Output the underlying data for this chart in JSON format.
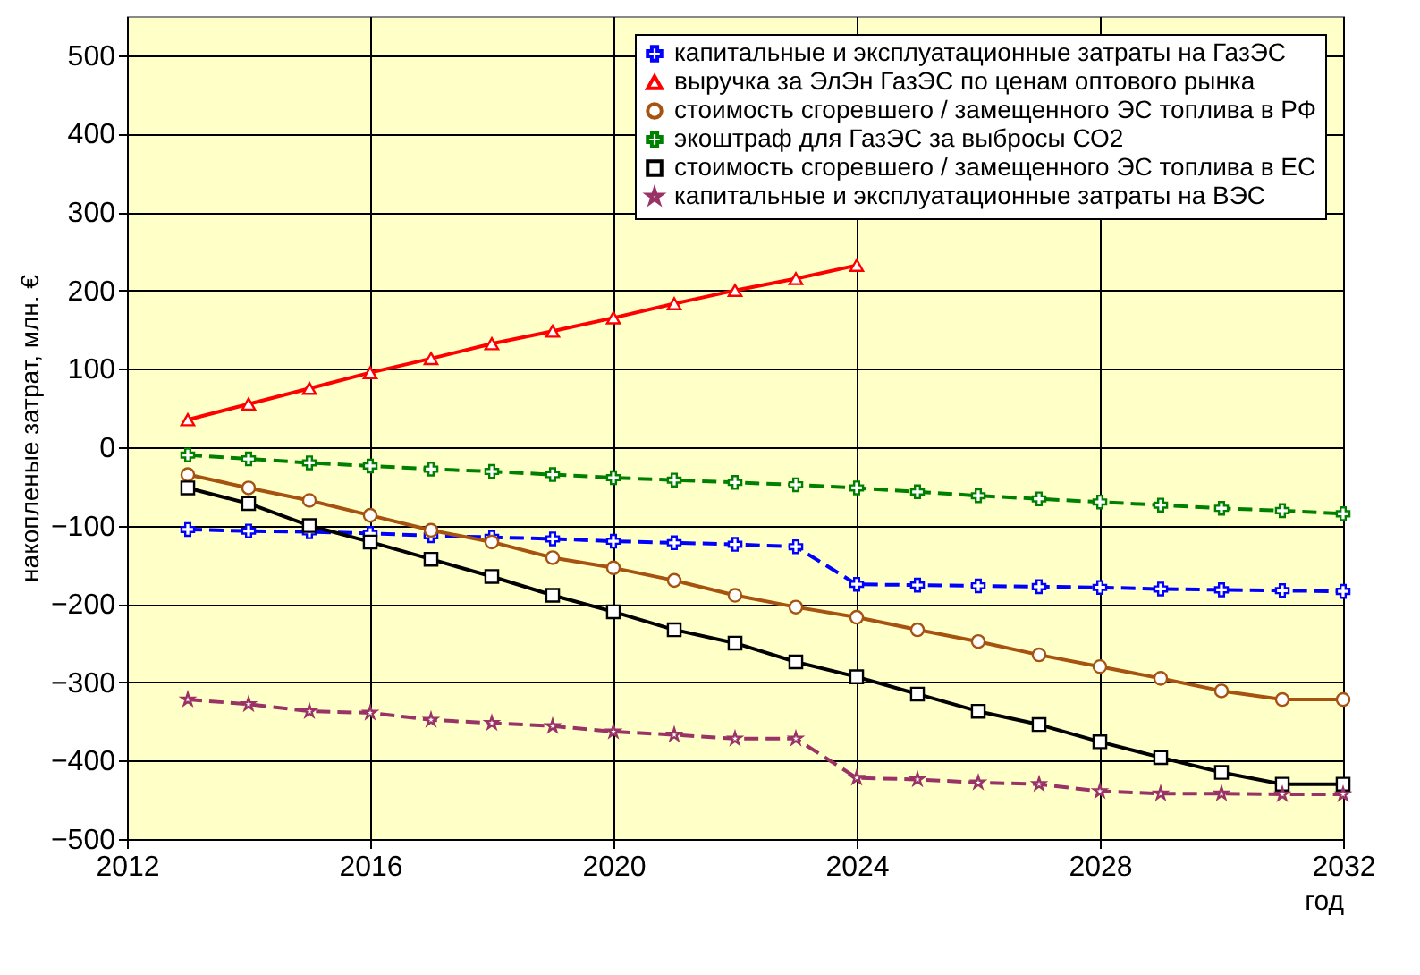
{
  "chart_data": {
    "type": "line",
    "xlabel": "год",
    "ylabel": "накопленые затрат, млн. €",
    "x": [
      2013,
      2014,
      2015,
      2016,
      2017,
      2018,
      2019,
      2020,
      2021,
      2022,
      2023,
      2024,
      2025,
      2026,
      2027,
      2028,
      2029,
      2030,
      2031,
      2032
    ],
    "series": [
      {
        "name": "капитальные и эксплуатационные затраты на ГазЭС",
        "color": "#0000ff",
        "marker": "cross",
        "line_style": "dashed",
        "values": [
          -105,
          -107,
          -108,
          -110,
          -113,
          -115,
          -117,
          -120,
          -122,
          -124,
          -127,
          -175,
          -176,
          -177,
          -178,
          -179,
          -181,
          -182,
          -183,
          -184
        ]
      },
      {
        "name": "выручка за ЭлЭн ГазЭС по ценам оптового рынка",
        "color": "#ff0000",
        "marker": "triangle",
        "line_style": "solid",
        "values": [
          35,
          55,
          75,
          95,
          113,
          132,
          148,
          165,
          183,
          200,
          215,
          232,
          null,
          null,
          null,
          null,
          null,
          null,
          null,
          null
        ]
      },
      {
        "name": "стоимость сгоревшего / замещенного ЭС топлива в РФ",
        "color": "#a65311",
        "marker": "circle",
        "line_style": "solid",
        "values": [
          -35,
          -52,
          -68,
          -87,
          -106,
          -121,
          -141,
          -154,
          -170,
          -189,
          -204,
          -217,
          -233,
          -248,
          -265,
          -280,
          -295,
          -311,
          -322,
          -322
        ]
      },
      {
        "name": "экоштраф для ГазЭС за выбросы СО2",
        "color": "#008000",
        "marker": "cross",
        "line_style": "dashed",
        "values": [
          -10,
          -15,
          -20,
          -24,
          -28,
          -31,
          -35,
          -39,
          -42,
          -45,
          -48,
          -52,
          -57,
          -62,
          -66,
          -70,
          -74,
          -78,
          -81,
          -85
        ]
      },
      {
        "name": "стоимость сгоревшего / замещенного ЭС топлива в ЕС",
        "color": "#000000",
        "marker": "square",
        "line_style": "solid",
        "values": [
          -52,
          -72,
          -100,
          -121,
          -143,
          -165,
          -189,
          -210,
          -233,
          -250,
          -274,
          -293,
          -315,
          -337,
          -354,
          -376,
          -396,
          -415,
          -430,
          -430
        ]
      },
      {
        "name": "капитальные и эксплуатационные затраты на ВЭС",
        "color": "#993366",
        "marker": "star",
        "line_style": "dashed",
        "values": [
          -322,
          -328,
          -337,
          -339,
          -348,
          -352,
          -356,
          -363,
          -367,
          -372,
          -372,
          -422,
          -424,
          -428,
          -430,
          -439,
          -442,
          -442,
          -443,
          -443
        ]
      }
    ],
    "xlim": [
      2012,
      2032
    ],
    "xticks": [
      2012,
      2016,
      2020,
      2024,
      2028,
      2032
    ],
    "ylim": [
      -500,
      550
    ],
    "yticks": [
      -500,
      -400,
      -300,
      -200,
      -100,
      0,
      100,
      200,
      300,
      400,
      500
    ],
    "grid": true,
    "legend": "top right"
  }
}
